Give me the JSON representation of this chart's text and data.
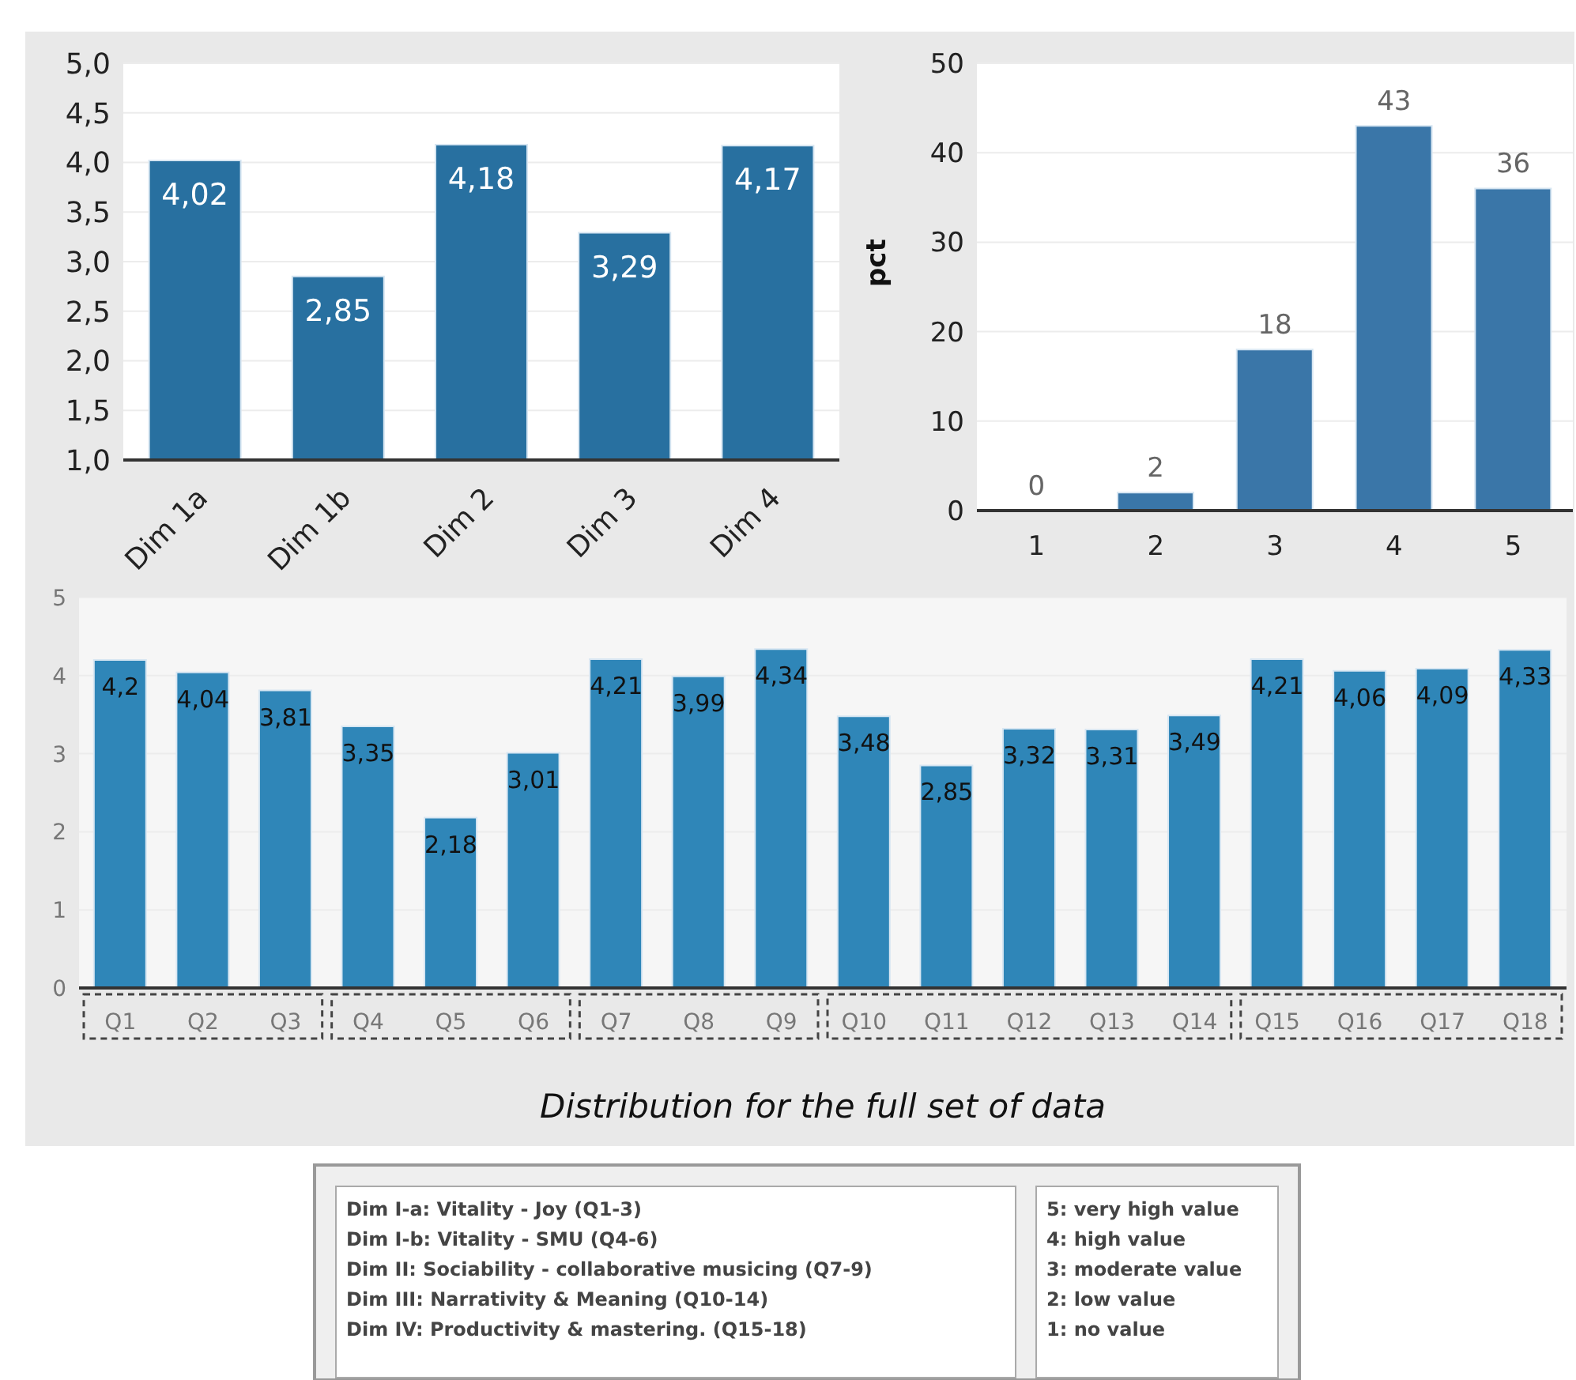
{
  "chart_data": [
    {
      "type": "bar",
      "categories": [
        "Dim 1a",
        "Dim 1b",
        "Dim 2",
        "Dim 3",
        "Dim 4"
      ],
      "values": [
        4.02,
        2.85,
        4.18,
        3.29,
        4.17
      ],
      "color": "#2870a0",
      "value_labels": [
        "4,02",
        "2,85",
        "4,18",
        "3,29",
        "4,17"
      ],
      "ylim": [
        1,
        5
      ],
      "yticks": [
        {
          "value": 1,
          "label": "1,0"
        },
        {
          "value": 1.5,
          "label": "1,5"
        },
        {
          "value": 2,
          "label": "2,0"
        },
        {
          "value": 2.5,
          "label": "2,5"
        },
        {
          "value": 3,
          "label": "3,0"
        },
        {
          "value": 3.5,
          "label": "3,5"
        },
        {
          "value": 4,
          "label": "4,0"
        },
        {
          "value": 4.5,
          "label": "4,5"
        },
        {
          "value": 5,
          "label": "5,0"
        }
      ],
      "grid": "y"
    },
    {
      "type": "bar",
      "categories": [
        "1",
        "2",
        "3",
        "4",
        "5"
      ],
      "values": [
        0,
        2,
        18,
        43,
        36
      ],
      "color": "#3a76a8",
      "ylabel": "pct",
      "data_labels": true,
      "ylim": [
        0,
        50
      ],
      "yticks": [
        0,
        10,
        20,
        30,
        40,
        50
      ],
      "grid": "y"
    },
    {
      "type": "bar",
      "categories": [
        "Q1",
        "Q2",
        "Q3",
        "Q4",
        "Q5",
        "Q6",
        "Q7",
        "Q8",
        "Q9",
        "Q10",
        "Q11",
        "Q12",
        "Q13",
        "Q14",
        "Q15",
        "Q16",
        "Q17",
        "Q18"
      ],
      "values": [
        4.2,
        4.04,
        3.81,
        3.35,
        2.18,
        3.01,
        4.21,
        3.99,
        4.34,
        3.48,
        2.85,
        3.32,
        3.31,
        3.49,
        4.21,
        4.06,
        4.09,
        4.33
      ],
      "color": "#2f86b8",
      "value_labels": [
        "4,2",
        "4,04",
        "3,81",
        "3,35",
        "2,18",
        "3,01",
        "4,21",
        "3,99",
        "4,34",
        "3,48",
        "2,85",
        "3,32",
        "3,31",
        "3,49",
        "4,21",
        "4,06",
        "4,09",
        "4,33"
      ],
      "xlabel": "Distribution for the full set of data",
      "ylim": [
        0,
        5
      ],
      "yticks": [
        0,
        1,
        2,
        3,
        4,
        5
      ],
      "grid": "y"
    },
    {
      "type": "other",
      "annotations": [
        "Dim I-a: Vitality - Joy (Q1-3)",
        "Dim I-b: Vitality - SMU (Q4-6)",
        "Dim II: Sociability - collaborative musicing (Q7-9)",
        "Dim III: Narrativity & Meaning  (Q10-14)",
        "Dim IV: Productivity & mastering. (Q15-18)",
        "5: very high value",
        "4: high value",
        "3: moderate value",
        "2: low value",
        "1: no value"
      ]
    }
  ]
}
